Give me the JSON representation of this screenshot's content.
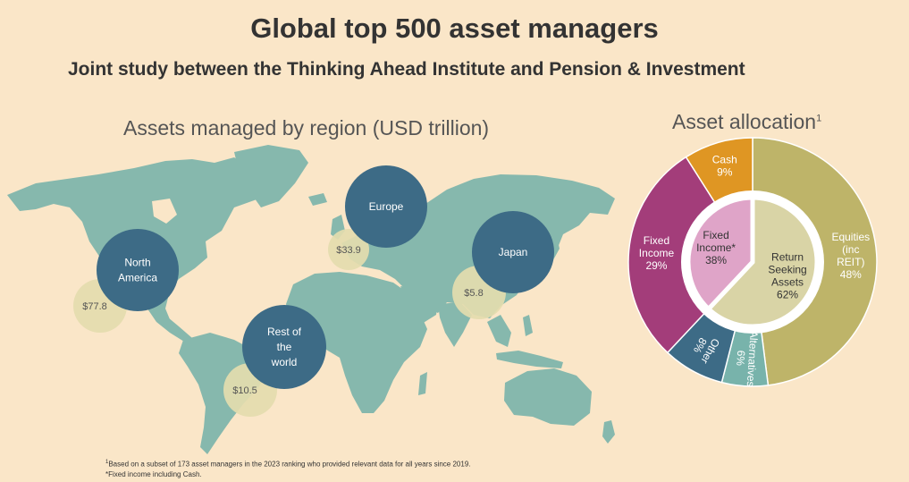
{
  "title": "Global top 500 asset managers",
  "subtitle": "Joint study between the Thinking Ahead Institute and Pension & Investment",
  "colors": {
    "background": "#fae6c8",
    "map_land": "#86b8ad",
    "region_circle": "#3d6b86",
    "value_circle": "#e4dcae",
    "equities": "#beb469",
    "cash": "#df9623",
    "fixed_income": "#a33d7a",
    "other": "#3d6b86",
    "alternatives": "#78b3ab",
    "inner_return_seeking": "#d9d4a6",
    "inner_fixed_income": "#dfa4c8"
  },
  "chart_data": [
    {
      "type": "bubble-map",
      "title": "Assets managed by region (USD trillion)",
      "regions": [
        {
          "name": "North America",
          "lines": [
            "North",
            "America"
          ],
          "value_label": "$77.8",
          "value": 77.8
        },
        {
          "name": "Europe",
          "lines": [
            "Europe"
          ],
          "value_label": "$33.9",
          "value": 33.9
        },
        {
          "name": "Japan",
          "lines": [
            "Japan"
          ],
          "value_label": "$5.8",
          "value": 5.8
        },
        {
          "name": "Rest of the world",
          "lines": [
            "Rest of",
            "the",
            "world"
          ],
          "value_label": "$10.5",
          "value": 10.5
        }
      ]
    },
    {
      "type": "pie",
      "title": "Asset allocation",
      "title_superscript": "1",
      "outer": [
        {
          "name": "Equities (inc REIT)",
          "lines": [
            "Equities",
            "(inc",
            "REIT)",
            "48%"
          ],
          "value": 48,
          "color_key": "equities"
        },
        {
          "name": "Alternatives",
          "lines": [
            "Alternatives",
            "6%"
          ],
          "value": 6,
          "color_key": "alternatives",
          "rotated": true
        },
        {
          "name": "Other",
          "lines": [
            "Other",
            "8%"
          ],
          "value": 8,
          "color_key": "other",
          "rotated": true
        },
        {
          "name": "Fixed Income",
          "lines": [
            "Fixed",
            "Income",
            "29%"
          ],
          "value": 29,
          "color_key": "fixed_income"
        },
        {
          "name": "Cash",
          "lines": [
            "Cash",
            "9%"
          ],
          "value": 9,
          "color_key": "cash"
        }
      ],
      "inner": [
        {
          "name": "Return Seeking Assets",
          "lines": [
            "Return",
            "Seeking",
            "Assets",
            "62%"
          ],
          "value": 62,
          "color_key": "inner_return_seeking"
        },
        {
          "name": "Fixed Income*",
          "lines": [
            "Fixed",
            "Income*",
            "38%"
          ],
          "value": 38,
          "color_key": "inner_fixed_income"
        }
      ]
    }
  ],
  "footnotes": {
    "note1_marker": "1",
    "note1": "Based on a subset of 173 asset managers in the 2023 ranking who provided relevant data for all years since 2019.",
    "note2": "*Fixed income including Cash."
  }
}
